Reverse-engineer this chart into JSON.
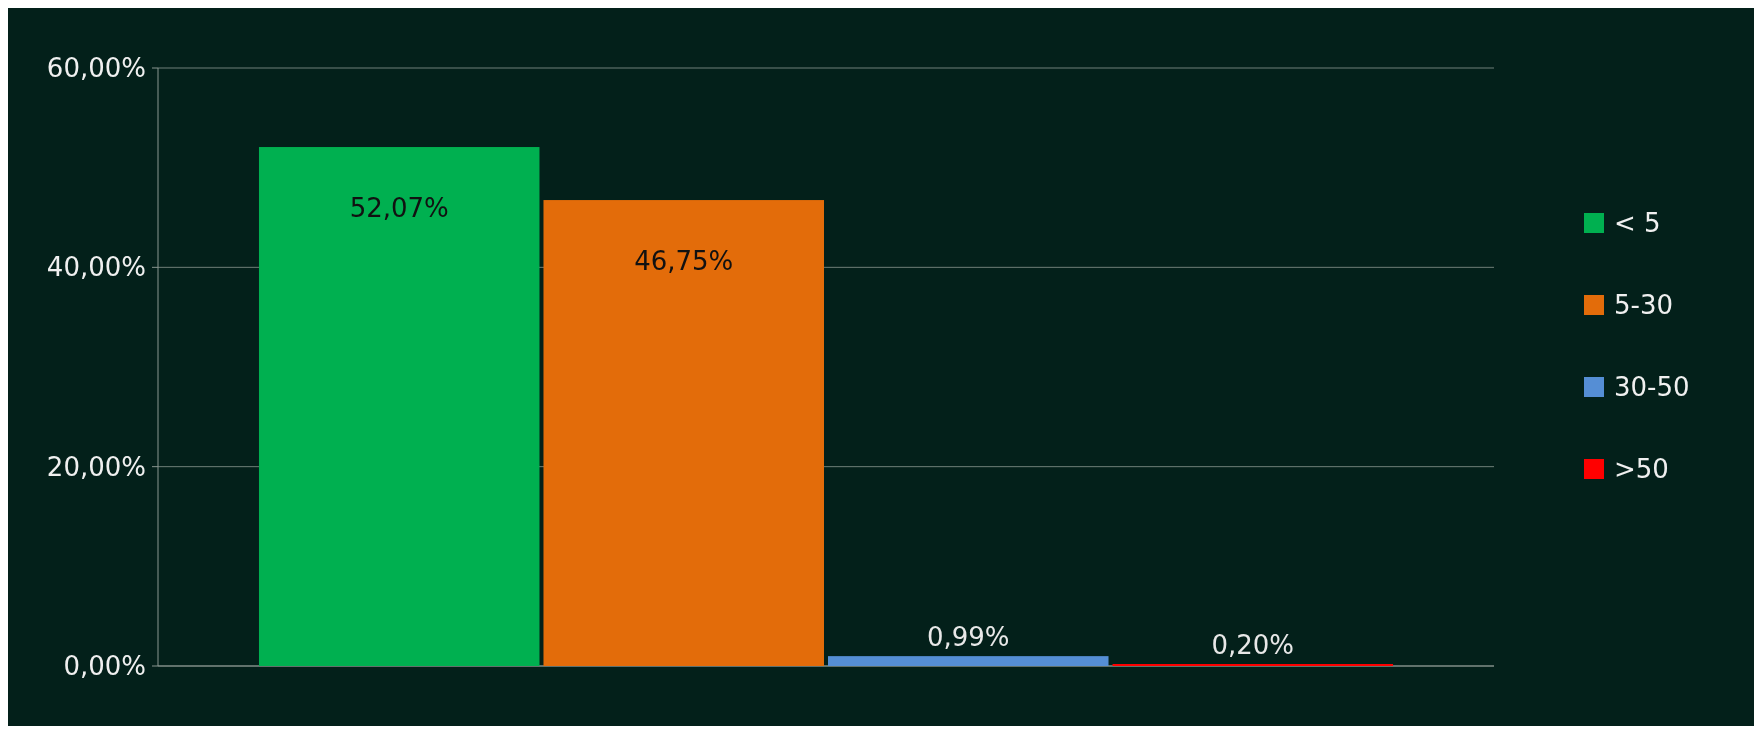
{
  "chart_data": {
    "type": "bar",
    "categories": [
      null
    ],
    "series": [
      {
        "name": "< 5",
        "color": "#00b050",
        "values": [
          52.07
        ],
        "value_labels": [
          "52,07%"
        ]
      },
      {
        "name": "5-30",
        "color": "#e36c0a",
        "values": [
          46.75
        ],
        "value_labels": [
          "46,75%"
        ]
      },
      {
        "name": "30-50",
        "color": "#558ed5",
        "values": [
          0.99
        ],
        "value_labels": [
          "0,99%"
        ]
      },
      {
        "name": ">50",
        "color": "#ff0000",
        "values": [
          0.2
        ],
        "value_labels": [
          "0,20%"
        ]
      }
    ],
    "ylim": [
      0,
      60
    ],
    "yticks": [
      {
        "value": 0,
        "label": "0,00%"
      },
      {
        "value": 20,
        "label": "20,00%"
      },
      {
        "value": 40,
        "label": "40,00%"
      },
      {
        "value": 60,
        "label": "60,00%"
      }
    ],
    "grid": "y",
    "legend": "right"
  }
}
